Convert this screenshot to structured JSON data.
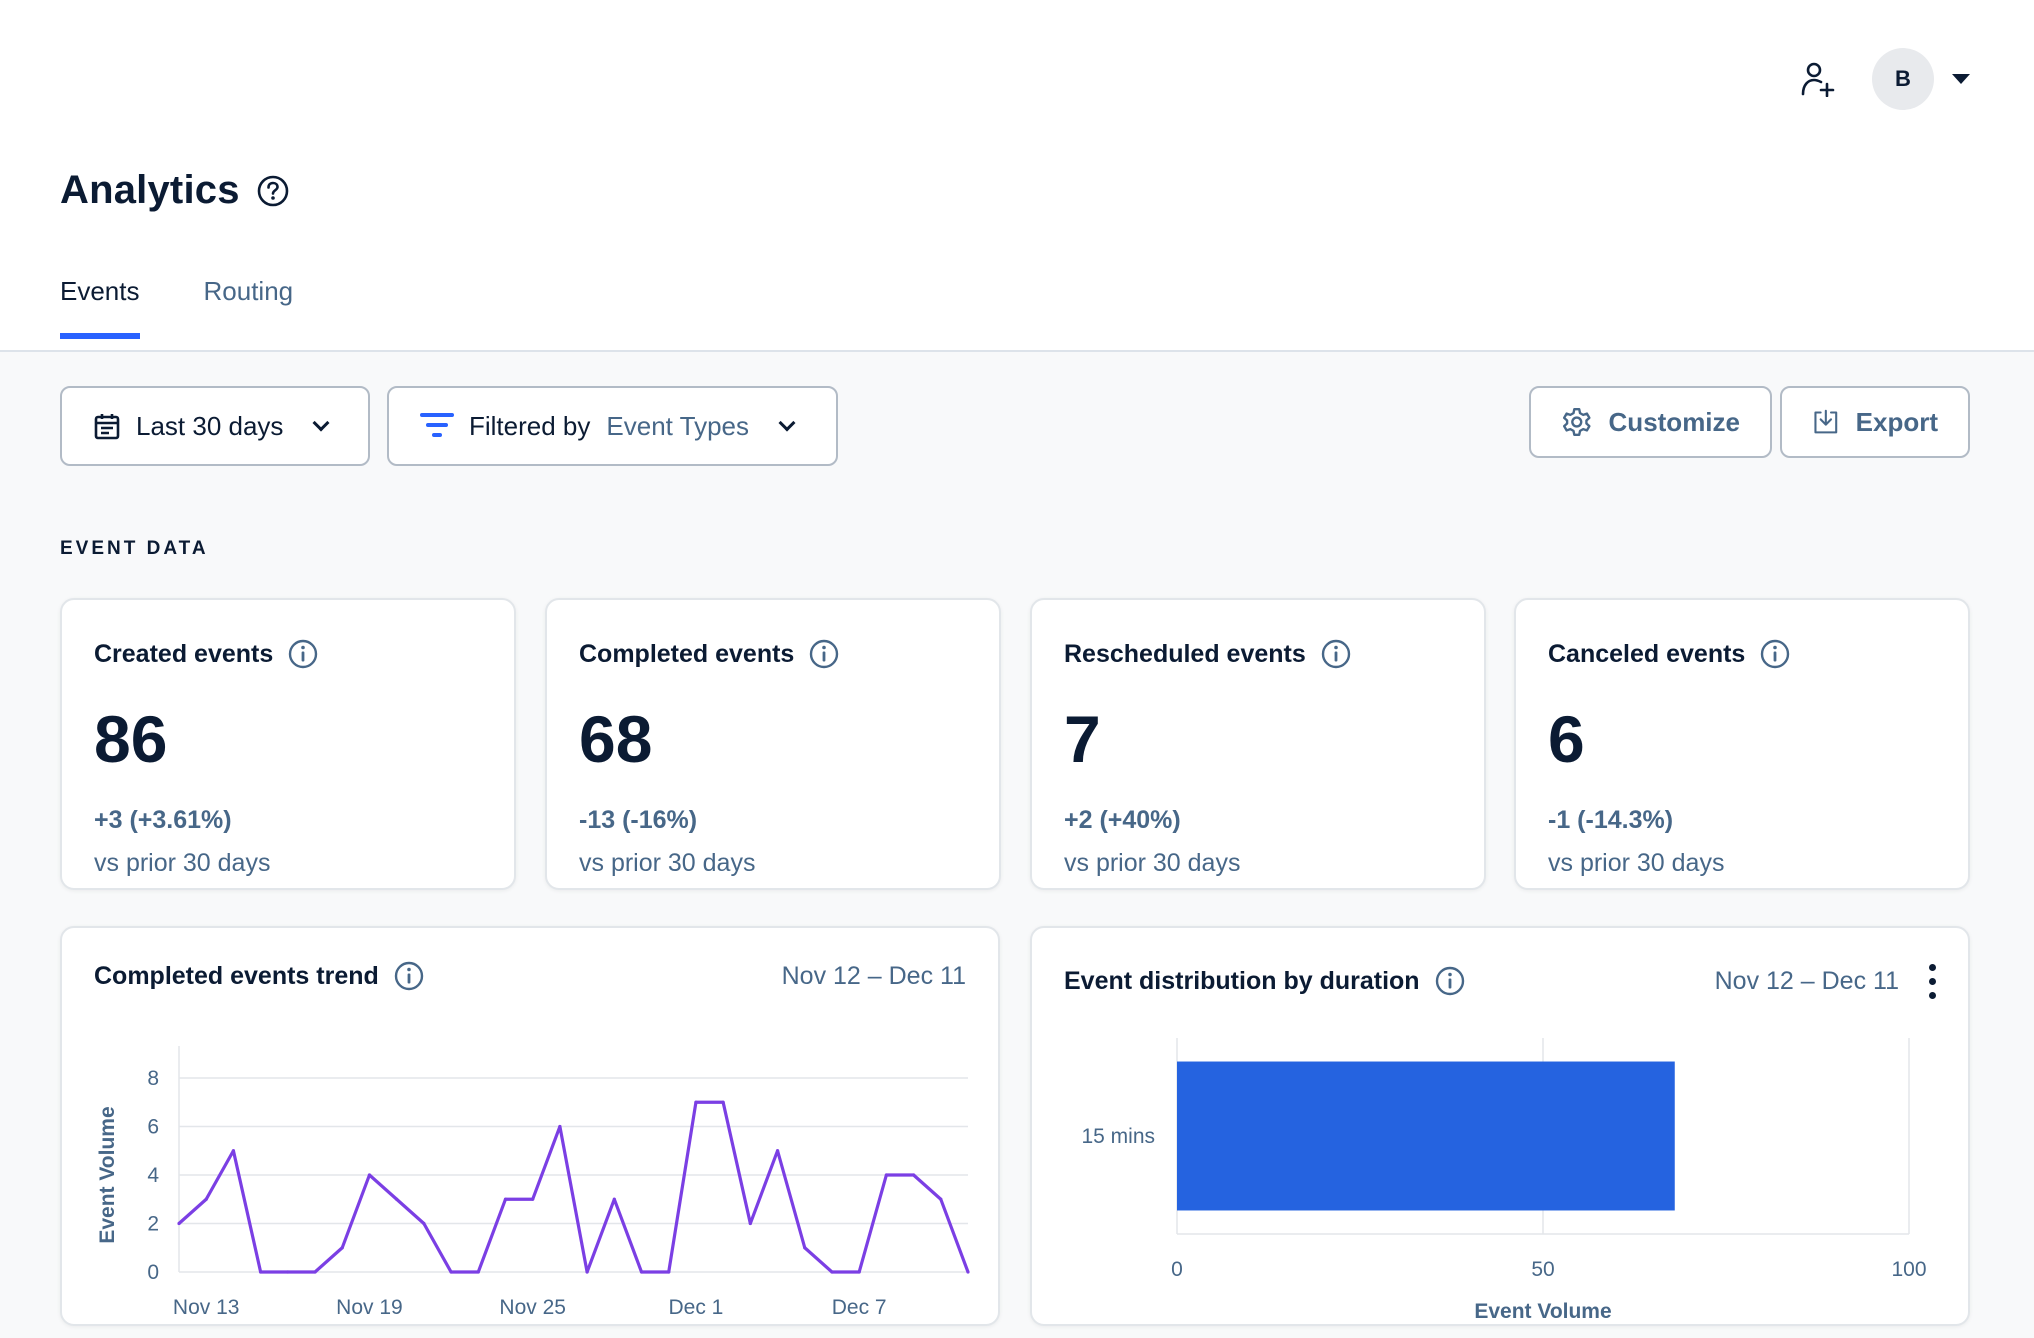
{
  "header": {
    "add_user_icon": "person-plus-icon",
    "avatar_initial": "B"
  },
  "page": {
    "title": "Analytics"
  },
  "tabs": [
    {
      "label": "Events",
      "active": true
    },
    {
      "label": "Routing",
      "active": false
    }
  ],
  "filters": {
    "date_range": "Last 30 days",
    "filter_prefix": "Filtered by",
    "filter_value": "Event Types"
  },
  "actions": {
    "customize": "Customize",
    "export": "Export"
  },
  "section": {
    "label": "EVENT DATA"
  },
  "stats": [
    {
      "title": "Created events",
      "value": "86",
      "delta": "+3 (+3.61%)",
      "sub": "vs prior 30 days"
    },
    {
      "title": "Completed events",
      "value": "68",
      "delta": "-13 (-16%)",
      "sub": "vs prior 30 days"
    },
    {
      "title": "Rescheduled events",
      "value": "7",
      "delta": "+2 (+40%)",
      "sub": "vs prior 30 days"
    },
    {
      "title": "Canceled events",
      "value": "6",
      "delta": "-1 (-14.3%)",
      "sub": "vs prior 30 days"
    }
  ],
  "trend_card": {
    "title": "Completed events trend",
    "date_range": "Nov 12 – Dec 11"
  },
  "dist_card": {
    "title": "Event distribution by duration",
    "date_range": "Nov 12 – Dec 11"
  },
  "colors": {
    "accent": "#2962ff",
    "line": "#7b3fe4",
    "bar": "#2563e0",
    "muted": "#476788"
  },
  "chart_data": [
    {
      "type": "line",
      "ylabel": "Event Volume",
      "ylim": [
        0,
        8
      ],
      "yticks": [
        0,
        2,
        4,
        6,
        8
      ],
      "x_tick_labels": [
        "Nov 13",
        "Nov 19",
        "Nov 25",
        "Dec 1",
        "Dec 7"
      ],
      "x_tick_index": [
        1,
        7,
        13,
        19,
        25
      ],
      "x": [
        "Nov 12",
        "Nov 13",
        "Nov 14",
        "Nov 15",
        "Nov 16",
        "Nov 17",
        "Nov 18",
        "Nov 19",
        "Nov 20",
        "Nov 21",
        "Nov 22",
        "Nov 23",
        "Nov 24",
        "Nov 25",
        "Nov 26",
        "Nov 27",
        "Nov 28",
        "Nov 29",
        "Nov 30",
        "Dec 1",
        "Dec 2",
        "Dec 3",
        "Dec 4",
        "Dec 5",
        "Dec 6",
        "Dec 7",
        "Dec 8",
        "Dec 9",
        "Dec 10",
        "Dec 11"
      ],
      "series": [
        {
          "values": [
            2,
            3,
            5,
            0,
            0,
            0,
            1,
            4,
            3,
            2,
            0,
            0,
            3,
            3,
            6,
            0,
            3,
            0,
            0,
            7,
            7,
            2,
            5,
            1,
            0,
            0,
            4,
            4,
            3,
            0
          ]
        }
      ],
      "grid": true
    },
    {
      "type": "bar",
      "orientation": "horizontal",
      "categories": [
        "15 mins"
      ],
      "values": [
        68
      ],
      "xlabel": "Event Volume",
      "xlim": [
        0,
        100
      ],
      "xticks": [
        0,
        50,
        100
      ],
      "grid": true
    }
  ]
}
